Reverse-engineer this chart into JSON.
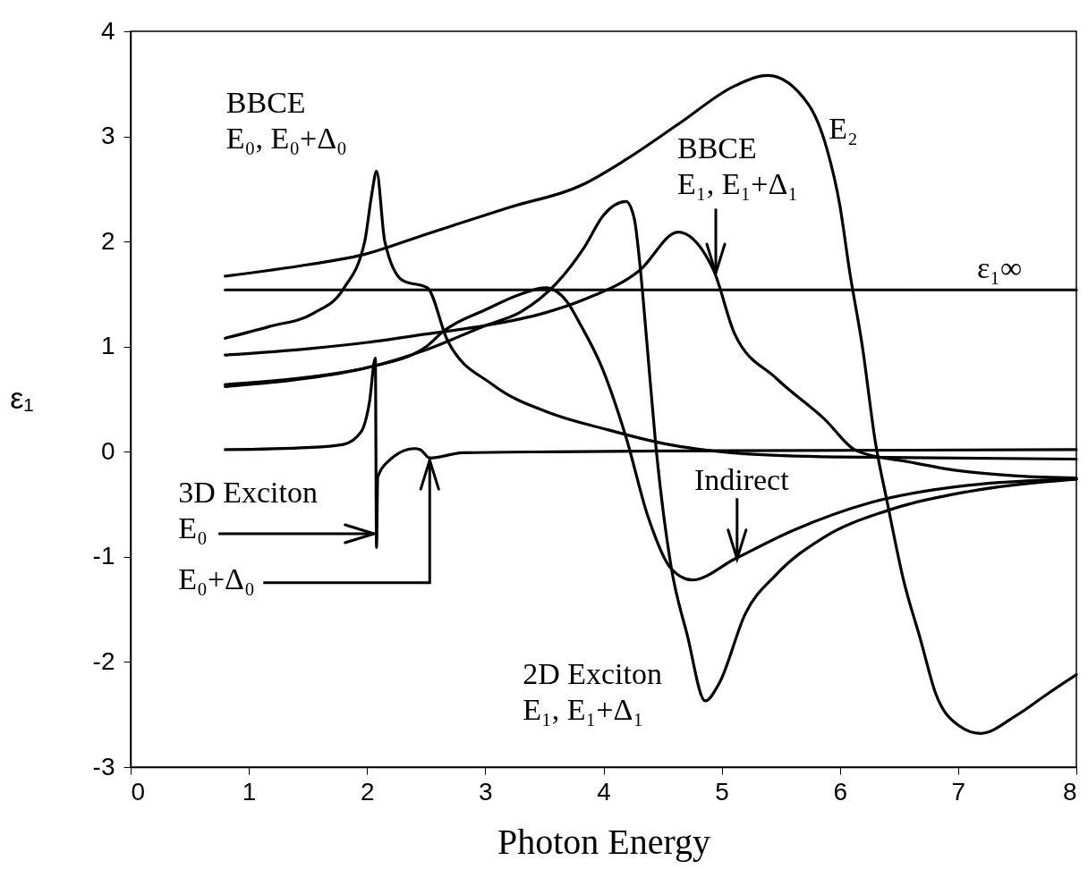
{
  "chart_data": {
    "type": "line",
    "xlabel": "Photon Energy",
    "ylabel": "ε₁",
    "xlim": [
      0,
      8
    ],
    "ylim": [
      -3,
      4
    ],
    "xticks": [
      0,
      1,
      2,
      3,
      4,
      5,
      6,
      7,
      8
    ],
    "yticks": [
      -3,
      -2,
      -1,
      0,
      1,
      2,
      3,
      4
    ],
    "grid": false,
    "marker": "none",
    "line_style": "solid",
    "series": [
      {
        "color": "#000000",
        "x": [
          0.8,
          8
        ],
        "values": [
          1.54,
          1.54
        ]
      },
      {
        "color": "#000000",
        "x": [
          0.8,
          1.5,
          1.95,
          2.5,
          3.19,
          3.84,
          4.19,
          4.65,
          5.11,
          5.39,
          5.73,
          5.89,
          6.0,
          6.08,
          6.19,
          6.3,
          6.4,
          6.54,
          6.68,
          6.81,
          7.0,
          7.19,
          7.49,
          7.76,
          8.0
        ],
        "values": [
          1.67,
          1.78,
          1.87,
          2.07,
          2.32,
          2.55,
          2.78,
          3.13,
          3.48,
          3.58,
          3.31,
          2.88,
          2.34,
          1.73,
          1.0,
          0.09,
          -0.48,
          -1.23,
          -1.78,
          -2.3,
          -2.6,
          -2.68,
          -2.51,
          -2.3,
          -2.12
        ]
      },
      {
        "color": "#000000",
        "x": [
          0.8,
          1.17,
          1.55,
          1.8,
          1.98,
          2.04,
          2.08,
          2.15,
          2.3,
          2.51,
          2.68,
          3.06,
          3.57,
          4.0,
          4.5,
          5.2,
          6.0,
          8.0
        ],
        "values": [
          1.08,
          1.19,
          1.32,
          1.55,
          2.0,
          2.45,
          2.67,
          2.0,
          1.63,
          1.56,
          1.06,
          0.64,
          0.36,
          0.22,
          0.08,
          -0.02,
          -0.05,
          -0.07
        ]
      },
      {
        "color": "#000000",
        "x": [
          0.8,
          1.5,
          1.8,
          1.95,
          2.02,
          2.07,
          2.08,
          2.09,
          2.18,
          2.4,
          2.45,
          2.53,
          2.81,
          3.57,
          5.0,
          8.0
        ],
        "values": [
          0.02,
          0.04,
          0.07,
          0.19,
          0.47,
          0.89,
          -0.91,
          -0.24,
          -0.09,
          0.03,
          0.02,
          -0.06,
          -0.01,
          0.0,
          0.01,
          0.02
        ]
      },
      {
        "color": "#000000",
        "x": [
          0.8,
          1.5,
          2.0,
          2.5,
          3.0,
          3.5,
          3.84,
          4.31,
          4.63,
          4.93,
          5.11,
          5.46,
          5.87,
          6.14,
          6.6,
          7.0,
          7.5,
          8.0
        ],
        "values": [
          0.92,
          0.98,
          1.04,
          1.12,
          1.2,
          1.32,
          1.45,
          1.73,
          2.09,
          1.73,
          1.12,
          0.7,
          0.31,
          0.01,
          -0.1,
          -0.18,
          -0.23,
          -0.25
        ]
      },
      {
        "color": "#000000",
        "x": [
          0.8,
          1.5,
          2.0,
          2.5,
          2.65,
          3.0,
          3.3,
          3.51,
          3.69,
          3.81,
          3.98,
          4.19,
          4.38,
          4.57,
          4.75,
          5.11,
          5.6,
          6.27,
          7.08,
          8.0
        ],
        "values": [
          0.62,
          0.7,
          0.8,
          1.0,
          1.15,
          1.35,
          1.5,
          1.56,
          1.43,
          1.2,
          0.82,
          0.14,
          -0.63,
          -1.11,
          -1.22,
          -1.02,
          -0.75,
          -0.48,
          -0.32,
          -0.26
        ]
      },
      {
        "color": "#000000",
        "x": [
          0.8,
          1.5,
          2.0,
          2.5,
          3.0,
          3.3,
          3.6,
          3.84,
          4.0,
          4.19,
          4.26,
          4.31,
          4.37,
          4.44,
          4.57,
          4.71,
          4.86,
          4.98,
          5.2,
          5.46,
          5.87,
          6.4,
          7.08,
          8.0
        ],
        "values": [
          0.64,
          0.71,
          0.8,
          0.97,
          1.2,
          1.33,
          1.6,
          1.95,
          2.25,
          2.38,
          2.22,
          1.76,
          1.0,
          0.09,
          -1.08,
          -1.75,
          -2.37,
          -2.2,
          -1.54,
          -1.17,
          -0.81,
          -0.56,
          -0.38,
          -0.26
        ]
      }
    ],
    "annotations": [
      {
        "text": "BBCE\nE₀, E₀+Δ₀",
        "x": 2.08,
        "y": 2.67
      },
      {
        "text": "E₂",
        "x": 5.8,
        "y": 3.2
      },
      {
        "text": "BBCE\nE₁, E₁+Δ₁",
        "x": 4.95,
        "y": 1.7
      },
      {
        "text": "ε₁∞",
        "x": 7.35,
        "y": 1.54
      },
      {
        "text": "3D Exciton\nE₀",
        "x": 2.06,
        "y": -0.78
      },
      {
        "text": "E₀+Δ₀",
        "x": 2.53,
        "y": -0.08
      },
      {
        "text": "Indirect",
        "x": 5.13,
        "y": -1.02
      },
      {
        "text": "2D Exciton\nE₁, E₁+Δ₁",
        "x": 4.86,
        "y": -2.37
      }
    ]
  }
}
